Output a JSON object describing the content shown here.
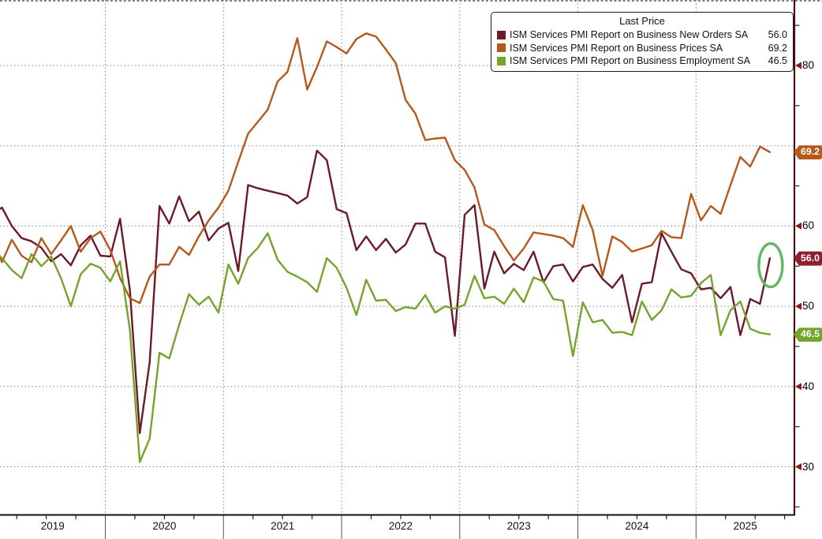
{
  "legend": {
    "title": "Last Price",
    "series": [
      {
        "label": "ISM Services PMI Report on Business New Orders SA",
        "value": "56.0",
        "color": "#6d1a28"
      },
      {
        "label": "ISM Services PMI Report on Business Prices SA",
        "value": "69.2",
        "color": "#b5581c"
      },
      {
        "label": "ISM Services PMI Report on Business Employment SA",
        "value": "46.5",
        "color": "#76a32d"
      }
    ]
  },
  "axes": {
    "y": {
      "side": "right",
      "major_ticks": [
        80,
        60,
        50,
        40,
        30
      ],
      "gridline_values": [
        80,
        70,
        60,
        50,
        40,
        30
      ],
      "minor_ticks": [
        85,
        75,
        65,
        55,
        45,
        35,
        25
      ],
      "arrow_color": "#8b1a1a",
      "axis_line_color": "#4a0e1a"
    },
    "x": {
      "year_labels": [
        "2019",
        "2020",
        "2021",
        "2022",
        "2023",
        "2024",
        "2025"
      ],
      "axis_line_color": "#111111"
    }
  },
  "badges": [
    {
      "value": "69.2",
      "v": 69.2,
      "color": "#b5581c"
    },
    {
      "value": "56.0",
      "v": 56.0,
      "color": "#8e1f2e"
    },
    {
      "value": "46.5",
      "v": 46.5,
      "color": "#76a32d"
    }
  ],
  "annotation": {
    "shape": "ellipse",
    "series": "ISM Services PMI Report on Business New Orders SA",
    "month": "2025-08",
    "value": 56.0,
    "color": "#62b862"
  },
  "chart_data": {
    "type": "line",
    "x_unit": "month",
    "x_start": "2019-01",
    "x_end": "2025-08",
    "ylim_visible": [
      24,
      88
    ],
    "grid": "dotted",
    "legend_position": "top-right",
    "series": [
      {
        "name": "ISM Services PMI Report on Business New Orders SA",
        "color": "#6d1a28",
        "last": 56.0,
        "values": [
          61.5,
          62.3,
          60.0,
          58.5,
          58.1,
          57.3,
          55.6,
          56.5,
          55.1,
          57.6,
          58.8,
          56.3,
          56.2,
          60.9,
          52.0,
          34.2,
          43.0,
          62.5,
          60.3,
          63.7,
          60.6,
          61.8,
          58.2,
          59.7,
          60.4,
          54.4,
          65.1,
          64.7,
          64.4,
          64.1,
          63.8,
          62.8,
          63.6,
          69.4,
          68.2,
          62.1,
          61.6,
          57.0,
          58.7,
          57.0,
          58.4,
          56.7,
          57.7,
          60.3,
          60.3,
          56.8,
          56.1,
          46.3,
          61.4,
          62.6,
          52.2,
          56.8,
          54.1,
          55.3,
          54.5,
          56.8,
          53.0,
          55.0,
          55.2,
          53.1,
          54.9,
          55.2,
          53.4,
          52.3,
          53.9,
          48.0,
          52.8,
          53.0,
          59.1,
          56.8,
          54.6,
          54.1,
          52.1,
          52.3,
          51.0,
          52.4,
          46.4,
          50.9,
          50.3,
          56.0
        ]
      },
      {
        "name": "ISM Services PMI Report on Business Prices SA",
        "color": "#b5581c",
        "last": 69.2,
        "values": [
          58.8,
          55.5,
          58.3,
          56.3,
          55.5,
          58.5,
          56.5,
          58.2,
          60.0,
          56.8,
          58.5,
          59.3,
          57.0,
          53.5,
          51.0,
          50.4,
          53.7,
          55.2,
          55.2,
          57.4,
          56.4,
          58.7,
          60.7,
          62.3,
          64.4,
          68.0,
          71.5,
          73.0,
          74.5,
          78.0,
          79.2,
          83.4,
          77.0,
          79.8,
          83.0,
          82.3,
          81.5,
          83.3,
          84.0,
          83.6,
          82.0,
          80.3,
          75.7,
          74.0,
          70.7,
          70.9,
          71.0,
          68.2,
          67.0,
          64.8,
          60.2,
          59.5,
          57.5,
          55.7,
          57.2,
          59.2,
          59.0,
          58.8,
          58.5,
          57.4,
          62.6,
          59.5,
          53.8,
          58.7,
          58.0,
          56.8,
          57.2,
          57.6,
          59.4,
          58.6,
          58.5,
          64.0,
          60.7,
          62.5,
          61.5,
          65.1,
          68.6,
          67.4,
          69.9,
          69.2
        ]
      },
      {
        "name": "ISM Services PMI Report on Business Employment SA",
        "color": "#76a32d",
        "last": 46.5,
        "values": [
          57.0,
          56.0,
          54.5,
          53.5,
          56.5,
          55.0,
          56.2,
          53.5,
          50.0,
          54.0,
          55.3,
          54.8,
          53.1,
          55.6,
          47.0,
          30.6,
          33.5,
          44.2,
          43.5,
          47.7,
          51.5,
          50.2,
          51.2,
          49.2,
          55.2,
          52.8,
          56.0,
          57.3,
          59.1,
          55.8,
          54.3,
          53.7,
          53.0,
          51.8,
          56.0,
          54.8,
          52.3,
          48.9,
          53.3,
          50.7,
          50.8,
          49.4,
          49.9,
          49.7,
          51.4,
          49.2,
          50.0,
          49.7,
          50.2,
          53.8,
          51.0,
          51.2,
          50.3,
          52.2,
          50.5,
          53.6,
          53.1,
          50.9,
          50.7,
          43.8,
          50.5,
          48.0,
          48.3,
          46.7,
          46.8,
          46.4,
          50.6,
          48.3,
          49.5,
          52.1,
          51.1,
          51.3,
          52.9,
          53.9,
          46.4,
          49.5,
          50.6,
          47.2,
          46.7,
          46.5
        ]
      }
    ]
  }
}
